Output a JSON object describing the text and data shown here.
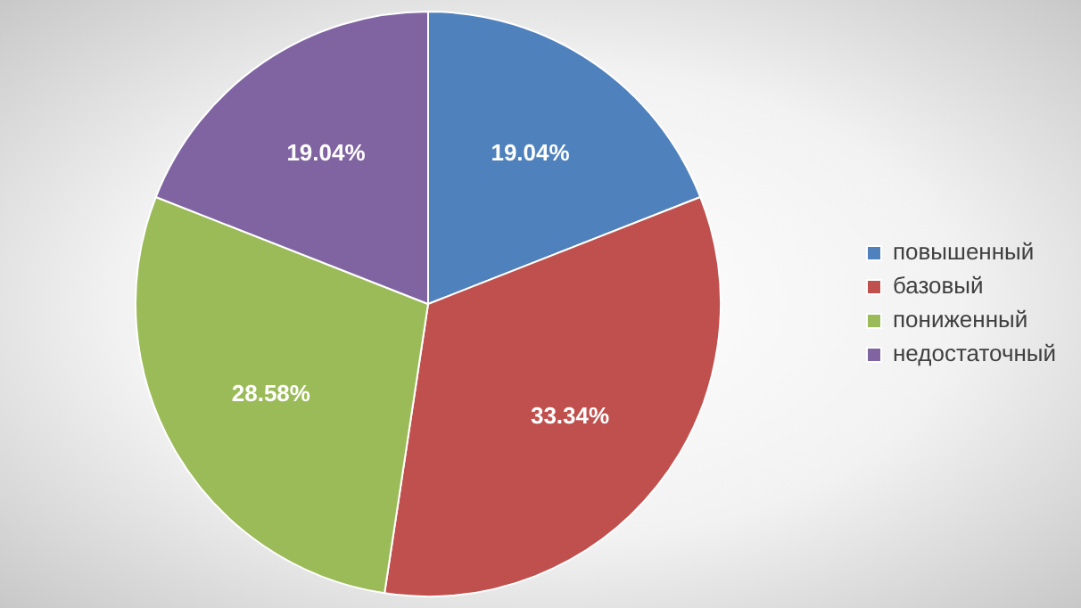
{
  "chart_data": {
    "type": "pie",
    "categories": [
      "повышенный",
      "базовый",
      "пониженный",
      "недостаточный"
    ],
    "values": [
      19.04,
      33.34,
      28.58,
      19.04
    ],
    "colors": [
      "#4f81bd",
      "#c0504d",
      "#9bbb59",
      "#8064a2"
    ],
    "value_labels": [
      "19.04%",
      "33.34%",
      "28.58%",
      "19.04%"
    ],
    "legend": "right"
  }
}
